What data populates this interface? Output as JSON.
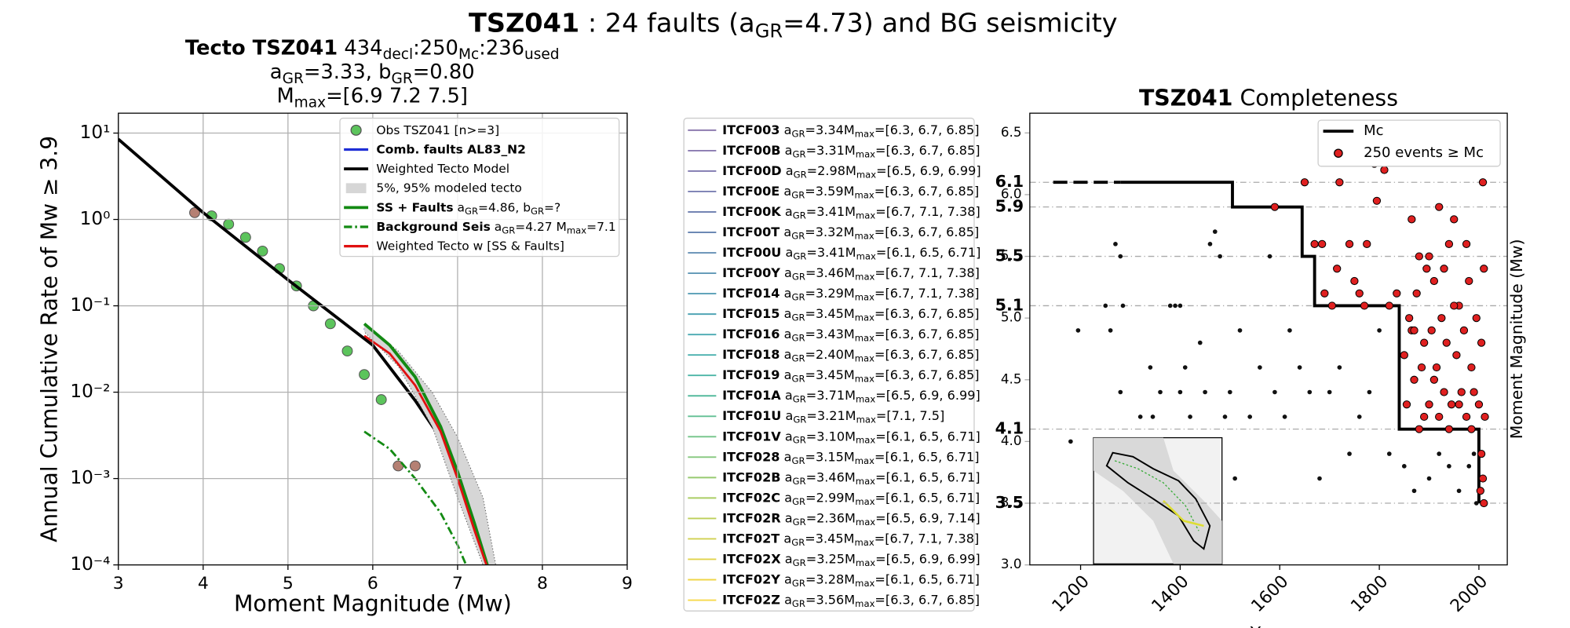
{
  "suptitle": [
    {
      "text": "TSZ041",
      "bold": true
    },
    {
      "text": " : 24 faults (a"
    },
    {
      "text": "GR",
      "sub": true
    },
    {
      "text": "=4.73) and BG seismicity"
    }
  ],
  "chart_data": [
    {
      "type": "line",
      "log_y": true,
      "grid": true,
      "title": [
        [
          {
            "text": "Tecto TSZ041",
            "bold": true
          },
          {
            "text": "  434"
          },
          {
            "text": "decl",
            "sub": true
          },
          {
            "text": ":250"
          },
          {
            "text": "Mc",
            "sub": true
          },
          {
            "text": ":236"
          },
          {
            "text": "used",
            "sub": true
          }
        ],
        [
          {
            "text": "a"
          },
          {
            "text": "GR",
            "sub": true
          },
          {
            "text": "=3.33,  b"
          },
          {
            "text": "GR",
            "sub": true
          },
          {
            "text": "=0.80"
          }
        ],
        [
          {
            "text": "M"
          },
          {
            "text": "max",
            "sub": true
          },
          {
            "text": "=[6.9 7.2 7.5]"
          }
        ]
      ],
      "xlabel": "Moment Magnitude (Mw)",
      "ylabel": "Annual Cumulative Rate of Mw  ≥  3.9",
      "xlim": [
        3,
        9
      ],
      "xticks": [
        3,
        4,
        5,
        6,
        7,
        8,
        9
      ],
      "ylim": [
        0.0001,
        17
      ],
      "yticks": [
        {
          "value": 0.0001,
          "label": "10⁻⁴"
        },
        {
          "value": 0.001,
          "label": "10⁻³"
        },
        {
          "value": 0.01,
          "label": "10⁻²"
        },
        {
          "value": 0.1,
          "label": "10⁻¹"
        },
        {
          "value": 1,
          "label": "10⁰"
        },
        {
          "value": 10,
          "label": "10¹"
        }
      ],
      "series": [
        {
          "name": "Obs TSZ041 [n>=3]",
          "mode": "markers",
          "color": "#5cc45c",
          "point_colors": [
            "#b58073",
            "#5cc45c",
            "#5cc45c",
            "#5cc45c",
            "#5cc45c",
            "#5cc45c",
            "#5cc45c",
            "#5cc45c",
            "#5cc45c",
            "#5cc45c",
            "#5cc45c",
            "#5cc45c",
            "#b58073",
            "#b58073"
          ],
          "x": [
            3.9,
            4.1,
            4.3,
            4.5,
            4.7,
            4.9,
            5.1,
            5.3,
            5.5,
            5.7,
            5.9,
            6.1,
            6.3,
            6.5
          ],
          "values": [
            1.2,
            1.1,
            0.88,
            0.62,
            0.43,
            0.27,
            0.17,
            0.1,
            0.062,
            0.03,
            0.016,
            0.0082,
            0.0014,
            0.0014
          ]
        },
        {
          "name": "Comb. faults AL83_N2",
          "bold": true,
          "mode": "line",
          "color": "#1f2fd6",
          "x": [
            5.9,
            6.2,
            6.5,
            6.8,
            7.0,
            7.2,
            7.33
          ],
          "values": [
            0.055,
            0.03,
            0.012,
            0.003,
            0.0009,
            0.0002,
            0.0001
          ]
        },
        {
          "name": "Weighted Tecto Model",
          "mode": "line",
          "color": "#000000",
          "width": 3,
          "x": [
            3,
            4,
            5,
            6,
            6.5,
            7,
            7.2,
            7.32
          ],
          "values": [
            8.5,
            1.2,
            0.2,
            0.035,
            0.008,
            0.0015,
            0.0004,
            0.0001
          ]
        },
        {
          "name": "5%, 95% modeled tecto",
          "mode": "band",
          "color": "#d6d6d6",
          "x": [
            5.9,
            6.3,
            6.7,
            7.0,
            7.3,
            7.45
          ],
          "upper": [
            0.06,
            0.03,
            0.01,
            0.003,
            0.0006,
            0.0001
          ],
          "lower": [
            0.05,
            0.02,
            0.004,
            0.0006,
            0.0001,
            0.0001
          ]
        },
        {
          "name": "SS + Faults",
          "bold": true,
          "name_detail": [
            {
              "text": " a"
            },
            {
              "text": "GR",
              "sub": true
            },
            {
              "text": "=4.86,  b"
            },
            {
              "text": "GR",
              "sub": true
            },
            {
              "text": "=?"
            }
          ],
          "mode": "line",
          "color": "#138a13",
          "width": 3,
          "x": [
            5.9,
            6.2,
            6.5,
            6.8,
            7.0,
            7.2,
            7.35
          ],
          "values": [
            0.062,
            0.035,
            0.015,
            0.004,
            0.0012,
            0.0003,
            0.0001
          ]
        },
        {
          "name": "Background Seis",
          "bold": true,
          "name_detail": [
            {
              "text": " a"
            },
            {
              "text": "GR",
              "sub": true
            },
            {
              "text": "=4.27 M"
            },
            {
              "text": "max",
              "sub": true
            },
            {
              "text": "=7.1"
            }
          ],
          "mode": "line",
          "dash": "8 3 2 3",
          "color": "#138a13",
          "x": [
            5.9,
            6.2,
            6.5,
            6.8,
            7.0,
            7.1
          ],
          "values": [
            0.0035,
            0.0022,
            0.001,
            0.0004,
            0.00017,
            0.0001
          ]
        },
        {
          "name": "Weighted Tecto w [SS & Faults]",
          "mode": "line",
          "color": "#e01010",
          "x": [
            5.9,
            6.2,
            6.5,
            6.8,
            7.0,
            7.2,
            7.34
          ],
          "values": [
            0.045,
            0.028,
            0.012,
            0.0035,
            0.001,
            0.00025,
            0.0001
          ]
        }
      ]
    },
    {
      "type": "scatter",
      "title": [
        {
          "text": "TSZ041",
          "bold": true
        },
        {
          "text": " Completeness"
        }
      ],
      "xlabel": "Year",
      "ylabel": "Moment Magnitude (Mw)",
      "xlim": [
        1098,
        2057
      ],
      "xticks": [
        1200,
        1400,
        1600,
        1800,
        2000
      ],
      "ylim": [
        3.0,
        6.66
      ],
      "yticks": [
        {
          "value": 3,
          "label": "3.0"
        },
        3.5,
        {
          "value": 4,
          "label": "4.0"
        },
        4.5,
        {
          "value": 5,
          "label": "5.0"
        },
        5.5,
        {
          "value": 6,
          "label": "6.0"
        },
        6.5
      ],
      "mc_ticks": [
        3.5,
        4.1,
        5.1,
        5.5,
        5.9,
        6.1
      ],
      "series": [
        {
          "name": "Mc",
          "mode": "line",
          "color": "#000000",
          "width": 3,
          "x": [
            1280,
            1505,
            1505,
            1645,
            1645,
            1670,
            1670,
            1840,
            1840,
            2000,
            2000
          ],
          "values": [
            6.1,
            6.1,
            5.9,
            5.9,
            5.5,
            5.5,
            5.1,
            5.1,
            4.1,
            4.1,
            3.5
          ]
        },
        {
          "mode": "line",
          "dash": "14 6",
          "color": "#000000",
          "width": 3,
          "x": [
            1145,
            1280
          ],
          "values": [
            6.1,
            6.1
          ]
        },
        {
          "mode": "markers",
          "color": "#111111",
          "x": [
            1180,
            1195,
            1250,
            1260,
            1270,
            1280,
            1285,
            1280,
            1320,
            1340,
            1345,
            1360,
            1380,
            1390,
            1400,
            1400,
            1410,
            1420,
            1440,
            1450,
            1460,
            1470,
            1480,
            1490,
            1500,
            1510,
            1520,
            1540,
            1560,
            1580,
            1590,
            1610,
            1620,
            1640,
            1660,
            1680,
            1700,
            1720,
            1740,
            1760,
            1780,
            1800,
            1820,
            1850,
            1870,
            1900,
            1920,
            1940,
            1960,
            1980,
            1990,
            1995
          ],
          "values": [
            4.0,
            4.9,
            5.1,
            4.9,
            5.6,
            5.5,
            5.1,
            4.4,
            4.2,
            4.6,
            4.2,
            4.4,
            5.1,
            5.1,
            5.1,
            4.4,
            4.6,
            4.2,
            4.8,
            4.4,
            5.6,
            5.7,
            5.5,
            4.2,
            4.4,
            3.7,
            4.9,
            4.2,
            4.6,
            5.5,
            4.4,
            4.2,
            4.9,
            4.6,
            4.4,
            3.7,
            4.4,
            4.6,
            3.9,
            4.2,
            4.4,
            4.9,
            3.9,
            3.8,
            3.6,
            3.7,
            3.9,
            3.8,
            3.6,
            3.8,
            3.9,
            3.5
          ]
        },
        {
          "name": "250 events  ≥  Mc",
          "mode": "markers",
          "color": "#e02020",
          "edge": "#000000",
          "x": [
            1590,
            1650,
            1670,
            1685,
            1690,
            1705,
            1715,
            1720,
            1740,
            1750,
            1760,
            1770,
            1775,
            1790,
            1795,
            1810,
            1820,
            1835,
            1850,
            1855,
            1860,
            1865,
            1870,
            1875,
            1880,
            1885,
            1890,
            1895,
            1900,
            1905,
            1910,
            1915,
            1920,
            1925,
            1930,
            1935,
            1940,
            1945,
            1950,
            1955,
            1960,
            1965,
            1970,
            1975,
            1980,
            1985,
            1990,
            1995,
            2000,
            2005,
            2008,
            2010,
            2012,
            2005,
            2008,
            2010,
            2003,
            1865,
            1880,
            1900,
            1920,
            1950,
            1890,
            1910,
            1940,
            1960,
            1985,
            1975,
            1930,
            1870
          ],
          "values": [
            5.9,
            6.1,
            5.6,
            5.6,
            5.2,
            5.1,
            5.4,
            6.1,
            5.6,
            5.3,
            5.2,
            5.1,
            5.6,
            6.25,
            5.95,
            6.2,
            5.1,
            5.2,
            4.7,
            4.3,
            5.0,
            4.9,
            4.5,
            5.2,
            4.1,
            4.6,
            4.8,
            5.4,
            4.3,
            4.9,
            5.3,
            4.6,
            4.2,
            5.0,
            4.4,
            4.8,
            5.6,
            4.3,
            5.8,
            4.7,
            5.1,
            4.4,
            4.9,
            4.2,
            5.3,
            4.6,
            4.4,
            5.0,
            4.3,
            4.8,
            6.1,
            5.4,
            4.2,
            3.9,
            3.7,
            3.5,
            3.6,
            5.8,
            5.5,
            5.5,
            5.9,
            5.1,
            4.2,
            4.5,
            4.1,
            4.3,
            4.1,
            5.6,
            5.4,
            4.9
          ]
        }
      ]
    }
  ],
  "fault_legend": {
    "parts": {
      "a": " a",
      "gr": "GR",
      "max": "max"
    },
    "rows": [
      {
        "name": "ITCF003",
        "gr": "=3.34M",
        "mmax": "=[6.3, 6.7, 6.85]",
        "color": "#8e7cb0"
      },
      {
        "name": "ITCF00B",
        "gr": "=3.31M",
        "mmax": "=[6.3, 6.7, 6.85]",
        "color": "#8a7ab0"
      },
      {
        "name": "ITCF00D",
        "gr": "=2.98M",
        "mmax": "=[6.5, 6.9, 6.99]",
        "color": "#8079b0"
      },
      {
        "name": "ITCF00E",
        "gr": "=3.59M",
        "mmax": "=[6.3, 6.7, 6.85]",
        "color": "#7a7fb2"
      },
      {
        "name": "ITCF00K",
        "gr": "=3.41M",
        "mmax": "=[6.7, 7.1, 7.38]",
        "color": "#7384b3"
      },
      {
        "name": "ITCF00T",
        "gr": "=3.32M",
        "mmax": "=[6.3, 6.7, 6.85]",
        "color": "#6c89b4"
      },
      {
        "name": "ITCF00U",
        "gr": "=3.41M",
        "mmax": "=[6.1, 6.5, 6.71]",
        "color": "#6590b5"
      },
      {
        "name": "ITCF00Y",
        "gr": "=3.46M",
        "mmax": "=[6.7, 7.1, 7.38]",
        "color": "#5e97b6"
      },
      {
        "name": "ITCF014",
        "gr": "=3.29M",
        "mmax": "=[6.7, 7.1, 7.38]",
        "color": "#579eb6"
      },
      {
        "name": "ITCF015",
        "gr": "=3.45M",
        "mmax": "=[6.3, 6.7, 6.85]",
        "color": "#50a4b5"
      },
      {
        "name": "ITCF016",
        "gr": "=3.43M",
        "mmax": "=[6.3, 6.7, 6.85]",
        "color": "#4aaab2"
      },
      {
        "name": "ITCF018",
        "gr": "=2.40M",
        "mmax": "=[6.3, 6.7, 6.85]",
        "color": "#48b0ad"
      },
      {
        "name": "ITCF019",
        "gr": "=3.45M",
        "mmax": "=[6.3, 6.7, 6.85]",
        "color": "#4cb5a6"
      },
      {
        "name": "ITCF01A",
        "gr": "=3.71M",
        "mmax": "=[6.5, 6.9, 6.99]",
        "color": "#55ba9d"
      },
      {
        "name": "ITCF01U",
        "gr": "=3.21M",
        "mmax": "=[7.1, 7.5]",
        "color": "#62bf93"
      },
      {
        "name": "ITCF01V",
        "gr": "=3.10M",
        "mmax": "=[6.1, 6.5, 6.71]",
        "color": "#72c388"
      },
      {
        "name": "ITCF028",
        "gr": "=3.15M",
        "mmax": "=[6.1, 6.5, 6.71]",
        "color": "#84c77c"
      },
      {
        "name": "ITCF02B",
        "gr": "=3.46M",
        "mmax": "=[6.1, 6.5, 6.71]",
        "color": "#97ca70"
      },
      {
        "name": "ITCF02C",
        "gr": "=2.99M",
        "mmax": "=[6.1, 6.5, 6.71]",
        "color": "#aacd64"
      },
      {
        "name": "ITCF02R",
        "gr": "=2.36M",
        "mmax": "=[6.5, 6.9, 7.14]",
        "color": "#bdcf59"
      },
      {
        "name": "ITCF02T",
        "gr": "=3.45M",
        "mmax": "=[6.7, 7.1, 7.38]",
        "color": "#d0d150"
      },
      {
        "name": "ITCF02X",
        "gr": "=3.25M",
        "mmax": "=[6.5, 6.9, 6.99]",
        "color": "#e1d34a"
      },
      {
        "name": "ITCF02Y",
        "gr": "=3.28M",
        "mmax": "=[6.1, 6.5, 6.71]",
        "color": "#efd548"
      },
      {
        "name": "ITCF02Z",
        "gr": "=3.56M",
        "mmax": "=[6.3, 6.7, 6.85]",
        "color": "#f7d94a"
      }
    ]
  }
}
